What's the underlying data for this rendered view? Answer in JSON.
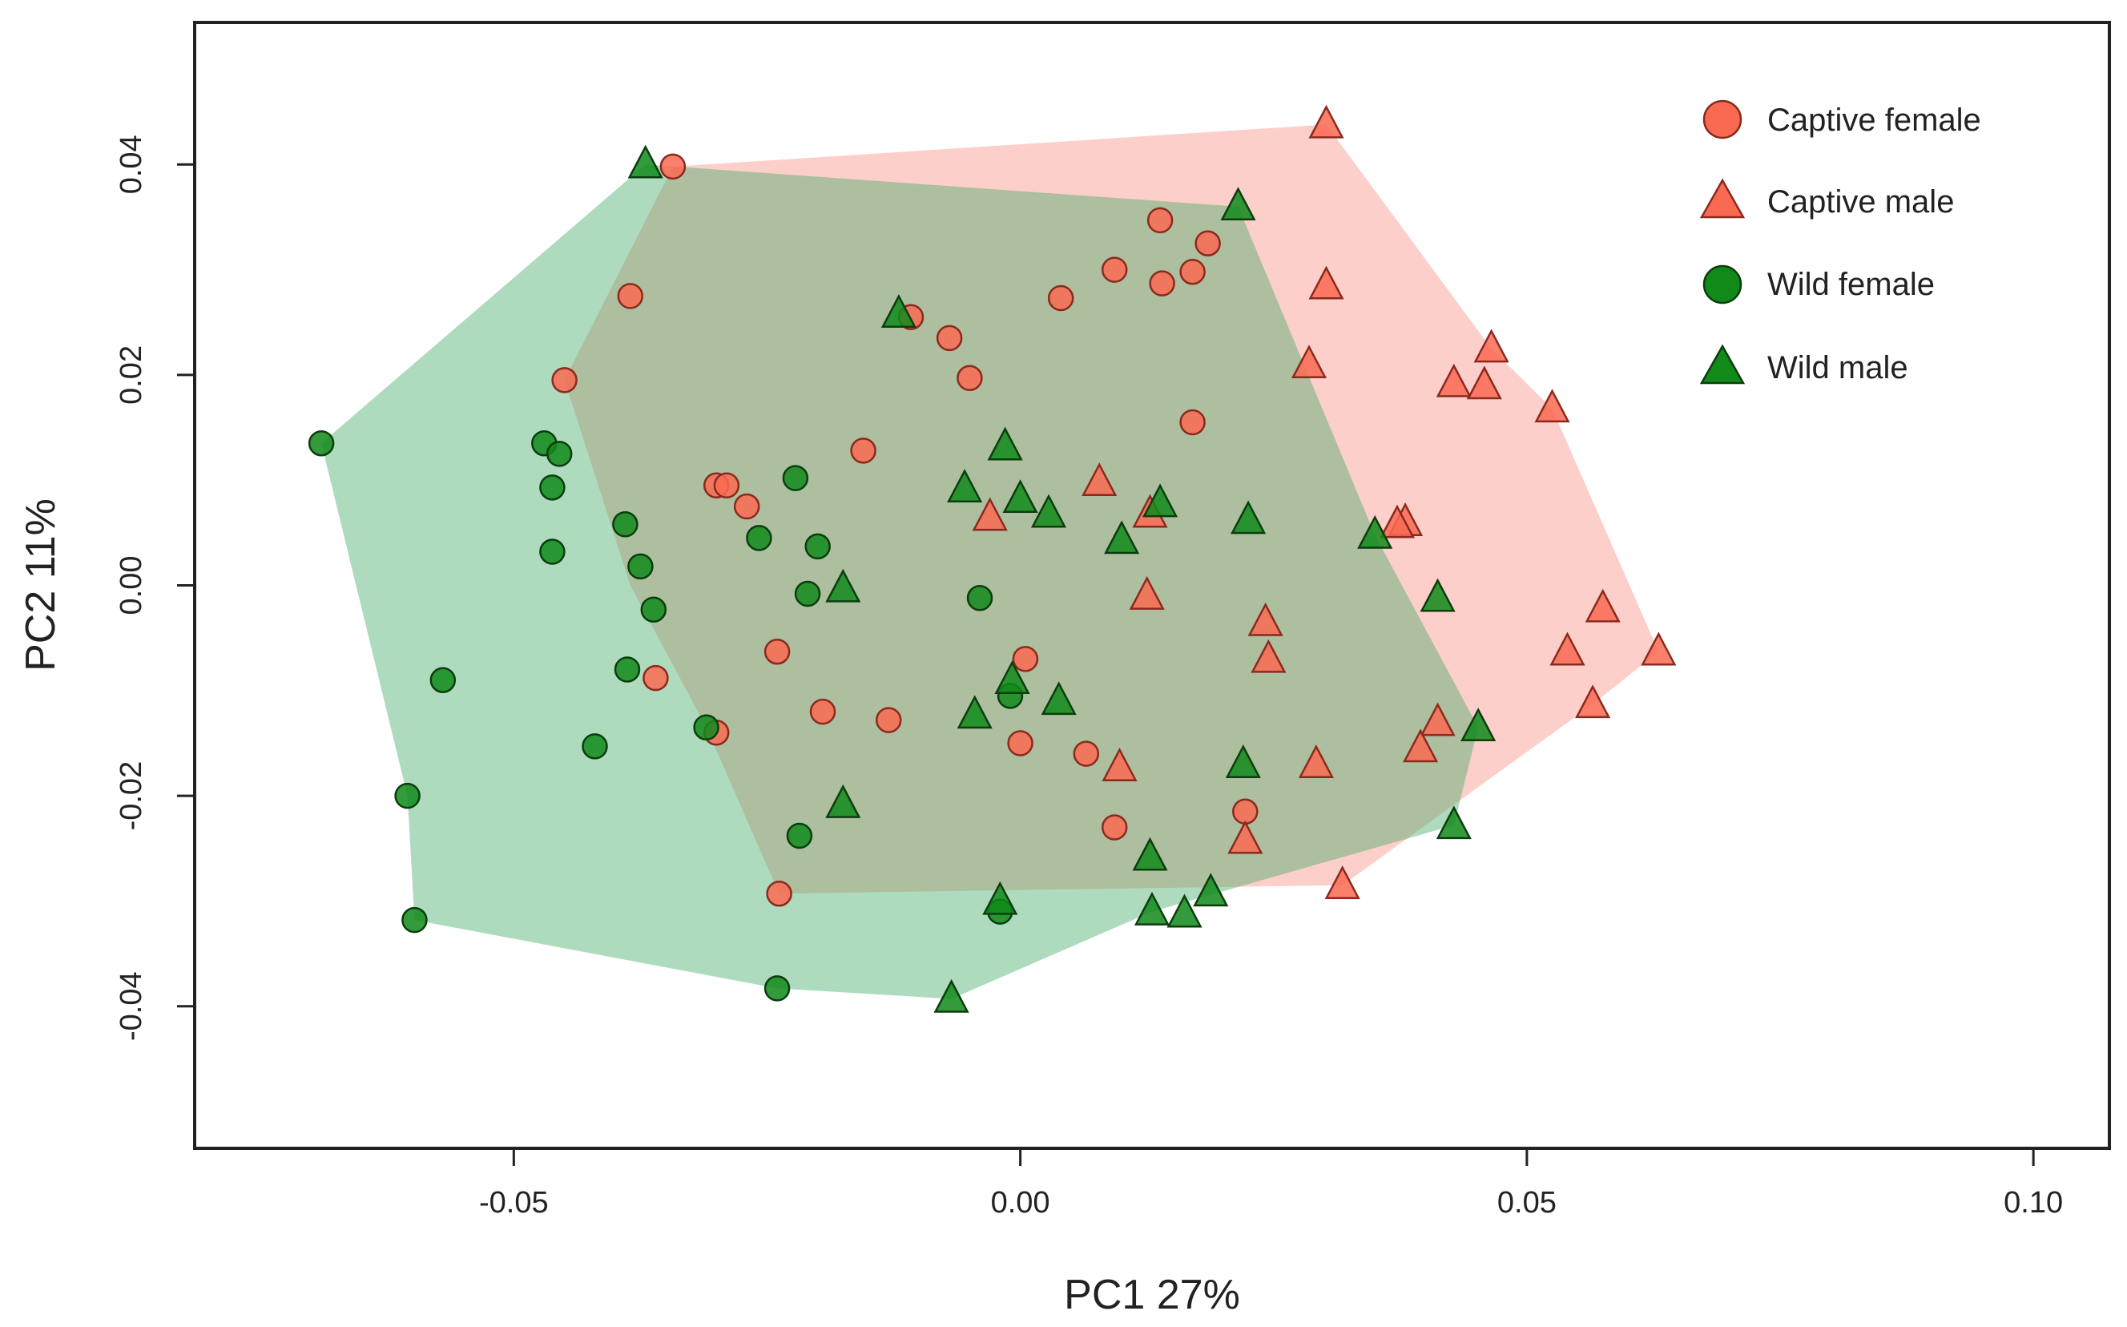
{
  "chart_data": {
    "type": "scatter",
    "title": "",
    "xlabel": "PC1 27%",
    "ylabel": "PC2 11%",
    "xlim": [
      -0.0815,
      0.1075
    ],
    "ylim": [
      -0.0535,
      0.0535
    ],
    "x_ticks": [
      -0.05,
      0.0,
      0.05,
      0.1
    ],
    "x_tick_labels": [
      "-0.05",
      "0.00",
      "0.05",
      "0.10"
    ],
    "y_ticks": [
      -0.04,
      -0.02,
      0.0,
      0.02,
      0.04
    ],
    "y_tick_labels": [
      "-0.04",
      "-0.02",
      "0.00",
      "0.02",
      "0.04"
    ],
    "grid": false,
    "legend_position": "top-right",
    "series": [
      {
        "name": "Captive female",
        "marker": "circle",
        "color": "#FA6A52",
        "points": [
          [
            -0.0343,
            0.0398
          ],
          [
            -0.0385,
            0.0275
          ],
          [
            -0.045,
            0.0195
          ],
          [
            -0.0108,
            0.0255
          ],
          [
            -0.007,
            0.0235
          ],
          [
            -0.005,
            0.0197
          ],
          [
            0.004,
            0.0273
          ],
          [
            0.0093,
            0.03
          ],
          [
            0.0138,
            0.0347
          ],
          [
            0.014,
            0.0287
          ],
          [
            0.0185,
            0.0325
          ],
          [
            0.017,
            0.0298
          ],
          [
            0.017,
            0.0155
          ],
          [
            -0.0155,
            0.0128
          ],
          [
            -0.03,
            0.0095
          ],
          [
            -0.029,
            0.0095
          ],
          [
            -0.027,
            0.0075
          ],
          [
            -0.036,
            -0.0088
          ],
          [
            -0.024,
            -0.0063
          ],
          [
            -0.0195,
            -0.012
          ],
          [
            -0.013,
            -0.0128
          ],
          [
            0.0,
            -0.015
          ],
          [
            0.0005,
            -0.007
          ],
          [
            0.0065,
            -0.016
          ],
          [
            0.0093,
            -0.023
          ],
          [
            0.0222,
            -0.0215
          ],
          [
            -0.03,
            -0.014
          ],
          [
            -0.0238,
            -0.0293
          ]
        ]
      },
      {
        "name": "Captive male",
        "marker": "triangle",
        "color": "#FA6A52",
        "points": [
          [
            0.0302,
            0.0438
          ],
          [
            0.0302,
            0.0285
          ],
          [
            0.0285,
            0.021
          ],
          [
            0.0465,
            0.0225
          ],
          [
            0.0428,
            0.0192
          ],
          [
            0.0458,
            0.019
          ],
          [
            0.0525,
            0.0168
          ],
          [
            0.0078,
            0.0098
          ],
          [
            0.0128,
            0.0068
          ],
          [
            -0.003,
            0.0065
          ],
          [
            0.038,
            0.006
          ],
          [
            0.0372,
            0.0058
          ],
          [
            0.0125,
            -0.001
          ],
          [
            0.0242,
            -0.0035
          ],
          [
            0.0245,
            -0.007
          ],
          [
            0.0575,
            -0.0022
          ],
          [
            0.054,
            -0.0063
          ],
          [
            0.063,
            -0.0063
          ],
          [
            0.0565,
            -0.0113
          ],
          [
            0.0412,
            -0.013
          ],
          [
            0.0395,
            -0.0155
          ],
          [
            0.0098,
            -0.0173
          ],
          [
            0.0292,
            -0.017
          ],
          [
            0.0222,
            -0.0242
          ],
          [
            0.0318,
            -0.0285
          ]
        ]
      },
      {
        "name": "Wild female",
        "marker": "circle",
        "color": "#118A1A",
        "points": [
          [
            -0.069,
            0.0135
          ],
          [
            -0.047,
            0.0135
          ],
          [
            -0.0455,
            0.0125
          ],
          [
            -0.0462,
            0.0093
          ],
          [
            -0.0462,
            0.0032
          ],
          [
            -0.039,
            0.0058
          ],
          [
            -0.0375,
            0.0018
          ],
          [
            -0.0362,
            -0.0023
          ],
          [
            -0.0222,
            0.0102
          ],
          [
            -0.0258,
            0.0045
          ],
          [
            -0.02,
            0.0037
          ],
          [
            -0.021,
            -0.0008
          ],
          [
            -0.004,
            -0.0012
          ],
          [
            -0.057,
            -0.009
          ],
          [
            -0.0388,
            -0.008
          ],
          [
            -0.042,
            -0.0153
          ],
          [
            -0.031,
            -0.0135
          ],
          [
            -0.0605,
            -0.02
          ],
          [
            -0.0598,
            -0.0318
          ],
          [
            -0.0218,
            -0.0238
          ],
          [
            -0.024,
            -0.0383
          ],
          [
            -0.001,
            -0.0105
          ],
          [
            -0.002,
            -0.031
          ]
        ]
      },
      {
        "name": "Wild male",
        "marker": "triangle",
        "color": "#118A1A",
        "points": [
          [
            -0.037,
            0.04
          ],
          [
            0.0215,
            0.036
          ],
          [
            -0.012,
            0.0258
          ],
          [
            -0.0015,
            0.0132
          ],
          [
            -0.0055,
            0.0092
          ],
          [
            0.0,
            0.0082
          ],
          [
            0.0028,
            0.0068
          ],
          [
            0.0138,
            0.0078
          ],
          [
            0.01,
            0.0043
          ],
          [
            0.0225,
            0.0062
          ],
          [
            0.035,
            0.0048
          ],
          [
            -0.0175,
            -0.0003
          ],
          [
            0.0412,
            -0.0012
          ],
          [
            -0.0008,
            -0.009
          ],
          [
            0.0038,
            -0.011
          ],
          [
            -0.0045,
            -0.0123
          ],
          [
            0.0452,
            -0.0135
          ],
          [
            0.022,
            -0.017
          ],
          [
            -0.0175,
            -0.0208
          ],
          [
            0.0428,
            -0.0228
          ],
          [
            0.0128,
            -0.0258
          ],
          [
            -0.002,
            -0.03
          ],
          [
            0.0188,
            -0.0292
          ],
          [
            0.013,
            -0.031
          ],
          [
            0.0162,
            -0.0312
          ],
          [
            -0.0068,
            -0.0393
          ]
        ]
      }
    ],
    "hulls": [
      {
        "name": "Captive",
        "color": "#FA8C80",
        "opacity": 0.42,
        "points": [
          [
            -0.0343,
            0.0398
          ],
          [
            0.0302,
            0.0438
          ],
          [
            0.0465,
            0.0225
          ],
          [
            0.0525,
            0.0168
          ],
          [
            0.063,
            -0.0063
          ],
          [
            0.0565,
            -0.0113
          ],
          [
            0.0318,
            -0.0285
          ],
          [
            -0.0238,
            -0.0293
          ],
          [
            -0.031,
            -0.0135
          ],
          [
            -0.0385,
            0.0
          ],
          [
            -0.045,
            0.0195
          ]
        ]
      },
      {
        "name": "Wild",
        "color": "#3DAA63",
        "opacity": 0.42,
        "points": [
          [
            -0.037,
            0.04
          ],
          [
            0.0215,
            0.036
          ],
          [
            0.035,
            0.0048
          ],
          [
            0.0452,
            -0.0135
          ],
          [
            0.0428,
            -0.0228
          ],
          [
            0.013,
            -0.031
          ],
          [
            -0.0068,
            -0.0393
          ],
          [
            -0.024,
            -0.0383
          ],
          [
            -0.0598,
            -0.0318
          ],
          [
            -0.0605,
            -0.02
          ],
          [
            -0.069,
            0.0135
          ]
        ]
      }
    ]
  }
}
